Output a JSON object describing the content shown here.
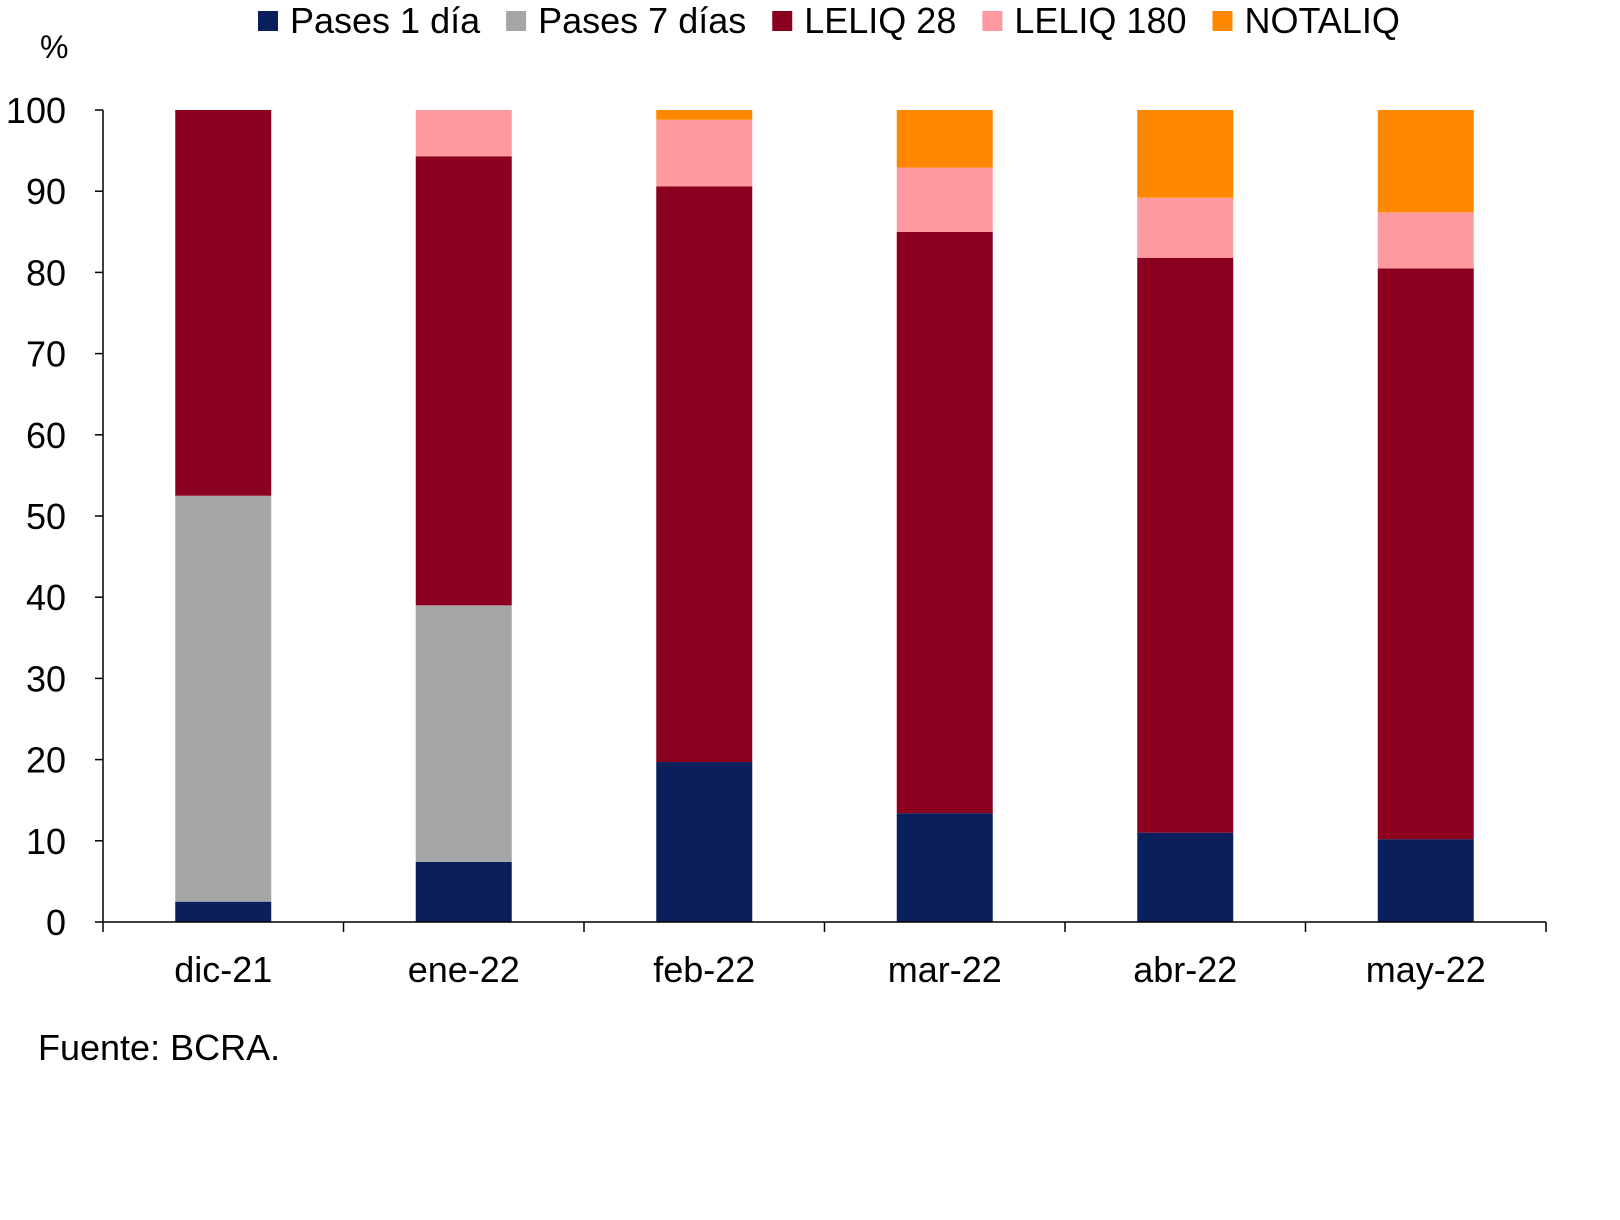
{
  "chart_data": {
    "type": "bar",
    "stacked": true,
    "title": "",
    "ylabel": "%",
    "xlabel": "",
    "ylim": [
      0,
      100
    ],
    "yticks": [
      0,
      10,
      20,
      30,
      40,
      50,
      60,
      70,
      80,
      90,
      100
    ],
    "grid": false,
    "legend_placement": "top",
    "categories": [
      "dic-21",
      "ene-22",
      "feb-22",
      "mar-22",
      "abr-22",
      "may-22"
    ],
    "series": [
      {
        "name": "Pases 1 día",
        "color": "#0a1f5c",
        "values": [
          2.5,
          7.4,
          19.7,
          13.4,
          11.0,
          10.2
        ]
      },
      {
        "name": "Pases 7 días",
        "color": "#a6a6a6",
        "values": [
          50.0,
          31.6,
          0,
          0,
          0,
          0
        ]
      },
      {
        "name": "LELIQ 28",
        "color": "#8b001e",
        "values": [
          47.5,
          55.3,
          70.9,
          71.6,
          70.8,
          70.3
        ]
      },
      {
        "name": "LELIQ 180",
        "color": "#ff99a0",
        "values": [
          0,
          5.7,
          8.2,
          7.9,
          7.4,
          6.9
        ]
      },
      {
        "name": "NOTALIQ",
        "color": "#ff8800",
        "values": [
          0,
          0,
          1.2,
          7.1,
          10.8,
          12.6
        ]
      }
    ],
    "source": "Fuente: BCRA."
  }
}
